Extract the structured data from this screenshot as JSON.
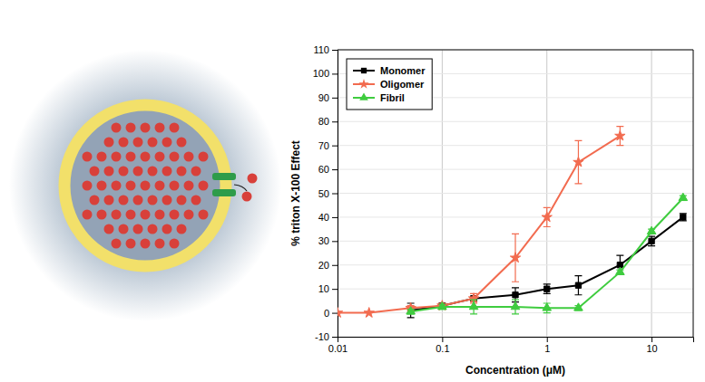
{
  "chart_data": {
    "type": "line",
    "xlabel": "Concentration (μM)",
    "ylabel": "% triton X-100 Effect",
    "log": "x",
    "xlim": [
      0.01,
      25
    ],
    "ylim": [
      -10,
      110
    ],
    "xticks": [
      0.01,
      0.1,
      1,
      10
    ],
    "yticks": [
      -10,
      0,
      10,
      20,
      30,
      40,
      50,
      60,
      70,
      80,
      90,
      100,
      110
    ],
    "grid": true,
    "legend": "upper left",
    "series": [
      {
        "name": "Monomer",
        "color": "#000000",
        "marker": "square",
        "line_style": "solid",
        "x": [
          0.05,
          0.1,
          0.2,
          0.5,
          1,
          2,
          5,
          10,
          20
        ],
        "values": [
          1,
          3,
          6,
          7.5,
          10,
          11.5,
          20,
          30,
          40
        ],
        "errors": [
          3,
          1,
          1,
          3,
          2,
          4,
          4,
          2,
          1.5
        ]
      },
      {
        "name": "Oligomer",
        "color": "#f26b4f",
        "marker": "star",
        "line_style": "solid",
        "x": [
          0.01,
          0.02,
          0.05,
          0.1,
          0.2,
          0.5,
          1,
          2,
          5
        ],
        "values": [
          0,
          0,
          2,
          3,
          6,
          23,
          40,
          63,
          74
        ],
        "errors": [
          0,
          0,
          1,
          1,
          2,
          10,
          4,
          9,
          4
        ]
      },
      {
        "name": "Fibril",
        "color": "#3fcc3f",
        "marker": "triangle",
        "line_style": "solid",
        "x": [
          0.05,
          0.1,
          0.2,
          0.5,
          1,
          2,
          5,
          10,
          20
        ],
        "values": [
          0.5,
          2.5,
          2.5,
          2.5,
          2,
          2,
          17,
          34,
          48
        ],
        "errors": [
          1,
          1,
          3,
          3,
          2,
          1,
          1,
          1,
          1
        ]
      }
    ]
  }
}
